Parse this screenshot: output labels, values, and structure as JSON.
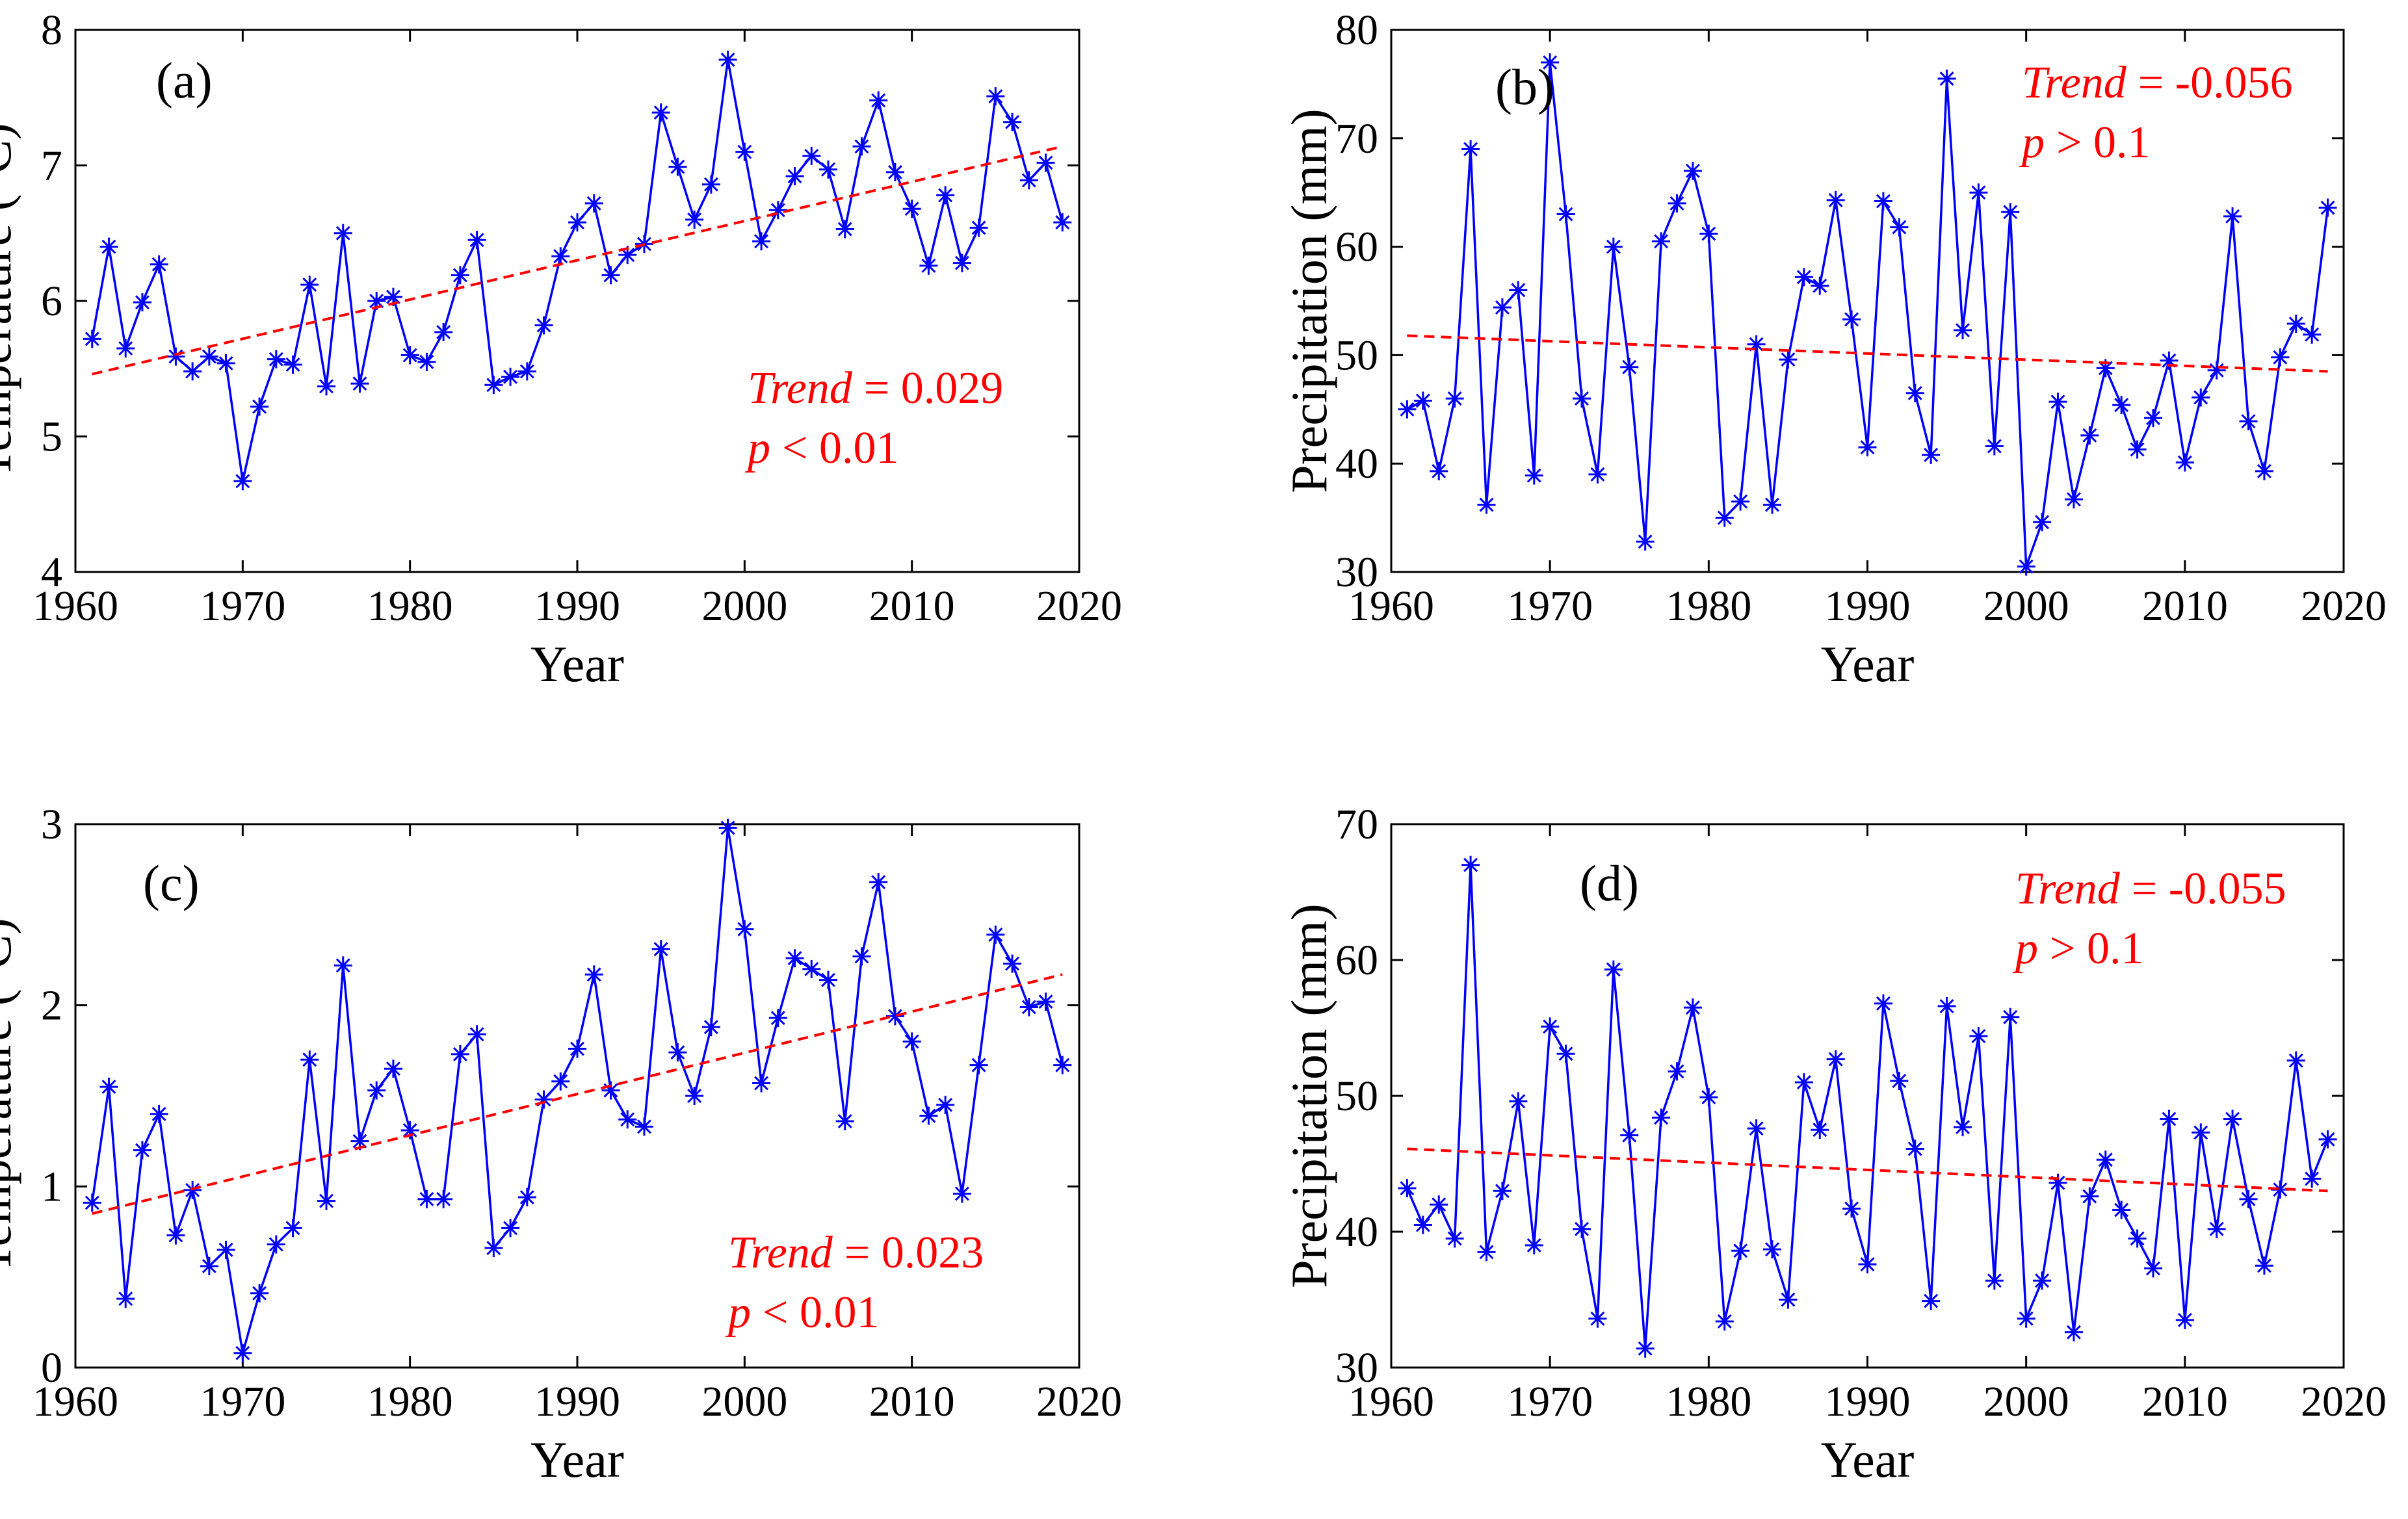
{
  "colors": {
    "series": "#0000ff",
    "trend": "#ff0000",
    "axis": "#000000"
  },
  "chart_data": [
    {
      "panel": "(a)",
      "type": "line",
      "xlabel": "Year",
      "ylabel": "Temperature (°C)",
      "xlim": [
        1960,
        2020
      ],
      "ylim": [
        4,
        8
      ],
      "xticks": [
        "1960",
        "1970",
        "1980",
        "1990",
        "2000",
        "2010",
        "2020"
      ],
      "yticks": [
        "4",
        "5",
        "6",
        "7",
        "8"
      ],
      "trend_label": "Trend",
      "trend_value": "= 0.029",
      "p_label": "p",
      "p_value": "< 0.01",
      "trend_line": {
        "x": [
          1961,
          2019
        ],
        "y": [
          5.46,
          7.14
        ]
      },
      "x": [
        1961,
        1962,
        1963,
        1964,
        1965,
        1966,
        1967,
        1968,
        1969,
        1970,
        1971,
        1972,
        1973,
        1974,
        1975,
        1976,
        1977,
        1978,
        1979,
        1980,
        1981,
        1982,
        1983,
        1984,
        1985,
        1986,
        1987,
        1988,
        1989,
        1990,
        1991,
        1992,
        1993,
        1994,
        1995,
        1996,
        1997,
        1998,
        1999,
        2000,
        2001,
        2002,
        2003,
        2004,
        2005,
        2006,
        2007,
        2008,
        2009,
        2010,
        2011,
        2012,
        2013,
        2014,
        2015,
        2016,
        2017,
        2018,
        2019
      ],
      "y": [
        5.72,
        6.4,
        5.65,
        5.99,
        6.27,
        5.59,
        5.48,
        5.59,
        5.54,
        4.67,
        5.22,
        5.57,
        5.53,
        6.12,
        5.37,
        6.5,
        5.39,
        6.0,
        6.03,
        5.6,
        5.55,
        5.77,
        6.19,
        6.45,
        5.38,
        5.44,
        5.48,
        5.82,
        6.33,
        6.58,
        6.72,
        6.19,
        6.34,
        6.42,
        7.39,
        6.99,
        6.6,
        6.86,
        7.78,
        7.1,
        6.44,
        6.67,
        6.92,
        7.07,
        6.97,
        6.53,
        7.14,
        7.48,
        6.95,
        6.68,
        6.26,
        6.78,
        6.28,
        6.54,
        7.51,
        7.32,
        6.89,
        7.02,
        6.58
      ]
    },
    {
      "panel": "(b)",
      "type": "line",
      "xlabel": "Year",
      "ylabel": "Precipitation (mm)",
      "xlim": [
        1960,
        2020
      ],
      "ylim": [
        30,
        80
      ],
      "xticks": [
        "1960",
        "1970",
        "1980",
        "1990",
        "2000",
        "2010",
        "2020"
      ],
      "yticks": [
        "30",
        "40",
        "50",
        "60",
        "70",
        "80"
      ],
      "trend_label": "Trend",
      "trend_value": "= -0.056",
      "p_label": "p",
      "p_value": "> 0.1",
      "trend_line": {
        "x": [
          1961,
          2019
        ],
        "y": [
          51.8,
          48.5
        ]
      },
      "x": [
        1961,
        1962,
        1963,
        1964,
        1965,
        1966,
        1967,
        1968,
        1969,
        1970,
        1971,
        1972,
        1973,
        1974,
        1975,
        1976,
        1977,
        1978,
        1979,
        1980,
        1981,
        1982,
        1983,
        1984,
        1985,
        1986,
        1987,
        1988,
        1989,
        1990,
        1991,
        1992,
        1993,
        1994,
        1995,
        1996,
        1997,
        1998,
        1999,
        2000,
        2001,
        2002,
        2003,
        2004,
        2005,
        2006,
        2007,
        2008,
        2009,
        2010,
        2011,
        2012,
        2013,
        2014,
        2015,
        2016,
        2017,
        2018,
        2019
      ],
      "y": [
        45.0,
        45.8,
        39.3,
        46.0,
        69.0,
        36.2,
        54.4,
        56.0,
        38.9,
        77.0,
        63.0,
        46.0,
        39.0,
        60.0,
        48.9,
        32.8,
        60.5,
        64.0,
        67.0,
        61.2,
        35.0,
        36.5,
        51.0,
        36.2,
        49.6,
        57.2,
        56.4,
        64.3,
        53.3,
        41.5,
        64.2,
        61.8,
        46.5,
        40.8,
        75.5,
        52.3,
        65.0,
        41.6,
        63.2,
        30.5,
        34.6,
        45.7,
        36.7,
        42.6,
        48.8,
        45.4,
        41.3,
        44.2,
        49.5,
        40.1,
        46.1,
        48.6,
        62.8,
        43.9,
        39.3,
        49.8,
        52.9,
        51.9,
        63.6
      ]
    },
    {
      "panel": "(c)",
      "type": "line",
      "xlabel": "Year",
      "ylabel": "Temperature (°C)",
      "xlim": [
        1960,
        2020
      ],
      "ylim": [
        0,
        3
      ],
      "xticks": [
        "1960",
        "1970",
        "1980",
        "1990",
        "2000",
        "2010",
        "2020"
      ],
      "yticks": [
        "0",
        "1",
        "2",
        "3"
      ],
      "trend_label": "Trend",
      "trend_value": "= 0.023",
      "p_label": "p",
      "p_value": "< 0.01",
      "trend_line": {
        "x": [
          1961,
          2019
        ],
        "y": [
          0.85,
          2.17
        ]
      },
      "x": [
        1961,
        1962,
        1963,
        1964,
        1965,
        1966,
        1967,
        1968,
        1969,
        1970,
        1971,
        1972,
        1973,
        1974,
        1975,
        1976,
        1977,
        1978,
        1979,
        1980,
        1981,
        1982,
        1983,
        1984,
        1985,
        1986,
        1987,
        1988,
        1989,
        1990,
        1991,
        1992,
        1993,
        1994,
        1995,
        1996,
        1997,
        1998,
        1999,
        2000,
        2001,
        2002,
        2003,
        2004,
        2005,
        2006,
        2007,
        2008,
        2009,
        2010,
        2011,
        2012,
        2013,
        2014,
        2015,
        2016,
        2017,
        2018,
        2019
      ],
      "y": [
        0.91,
        1.55,
        0.38,
        1.2,
        1.4,
        0.73,
        0.98,
        0.56,
        0.65,
        0.08,
        0.41,
        0.68,
        0.77,
        1.7,
        0.92,
        2.22,
        1.25,
        1.53,
        1.65,
        1.31,
        0.93,
        0.93,
        1.73,
        1.84,
        0.66,
        0.77,
        0.94,
        1.48,
        1.58,
        1.76,
        2.17,
        1.53,
        1.37,
        1.33,
        2.31,
        1.74,
        1.5,
        1.88,
        2.98,
        2.42,
        1.57,
        1.93,
        2.26,
        2.2,
        2.14,
        1.36,
        2.27,
        2.68,
        1.94,
        1.8,
        1.39,
        1.45,
        0.96,
        1.67,
        2.39,
        2.23,
        1.99,
        2.02,
        1.67
      ]
    },
    {
      "panel": "(d)",
      "type": "line",
      "xlabel": "Year",
      "ylabel": "Precipitation (mm)",
      "xlim": [
        1960,
        2020
      ],
      "ylim": [
        30,
        70
      ],
      "xticks": [
        "1960",
        "1970",
        "1980",
        "1990",
        "2000",
        "2010",
        "2020"
      ],
      "yticks": [
        "30",
        "40",
        "50",
        "60",
        "70"
      ],
      "trend_label": "Trend",
      "trend_value": "= -0.055",
      "p_label": "p",
      "p_value": "> 0.1",
      "trend_line": {
        "x": [
          1961,
          2019
        ],
        "y": [
          46.1,
          43.0
        ]
      },
      "x": [
        1961,
        1962,
        1963,
        1964,
        1965,
        1966,
        1967,
        1968,
        1969,
        1970,
        1971,
        1972,
        1973,
        1974,
        1975,
        1976,
        1977,
        1978,
        1979,
        1980,
        1981,
        1982,
        1983,
        1984,
        1985,
        1986,
        1987,
        1988,
        1989,
        1990,
        1991,
        1992,
        1993,
        1994,
        1995,
        1996,
        1997,
        1998,
        1999,
        2000,
        2001,
        2002,
        2003,
        2004,
        2005,
        2006,
        2007,
        2008,
        2009,
        2010,
        2011,
        2012,
        2013,
        2014,
        2015,
        2016,
        2017,
        2018,
        2019
      ],
      "y": [
        43.2,
        40.5,
        42.0,
        39.5,
        67.0,
        38.5,
        43.0,
        49.6,
        39.0,
        55.1,
        53.1,
        40.2,
        33.6,
        59.3,
        47.1,
        31.4,
        48.4,
        51.8,
        56.5,
        49.9,
        33.4,
        38.6,
        47.6,
        38.7,
        35.0,
        51.0,
        47.5,
        52.7,
        41.7,
        37.6,
        56.8,
        51.1,
        46.1,
        34.9,
        56.6,
        47.7,
        54.4,
        36.4,
        55.8,
        33.6,
        36.4,
        43.6,
        32.6,
        42.6,
        45.3,
        41.6,
        39.5,
        37.3,
        48.3,
        33.5,
        47.3,
        40.2,
        48.3,
        42.4,
        37.5,
        43.1,
        52.6,
        43.9,
        46.8
      ]
    }
  ]
}
